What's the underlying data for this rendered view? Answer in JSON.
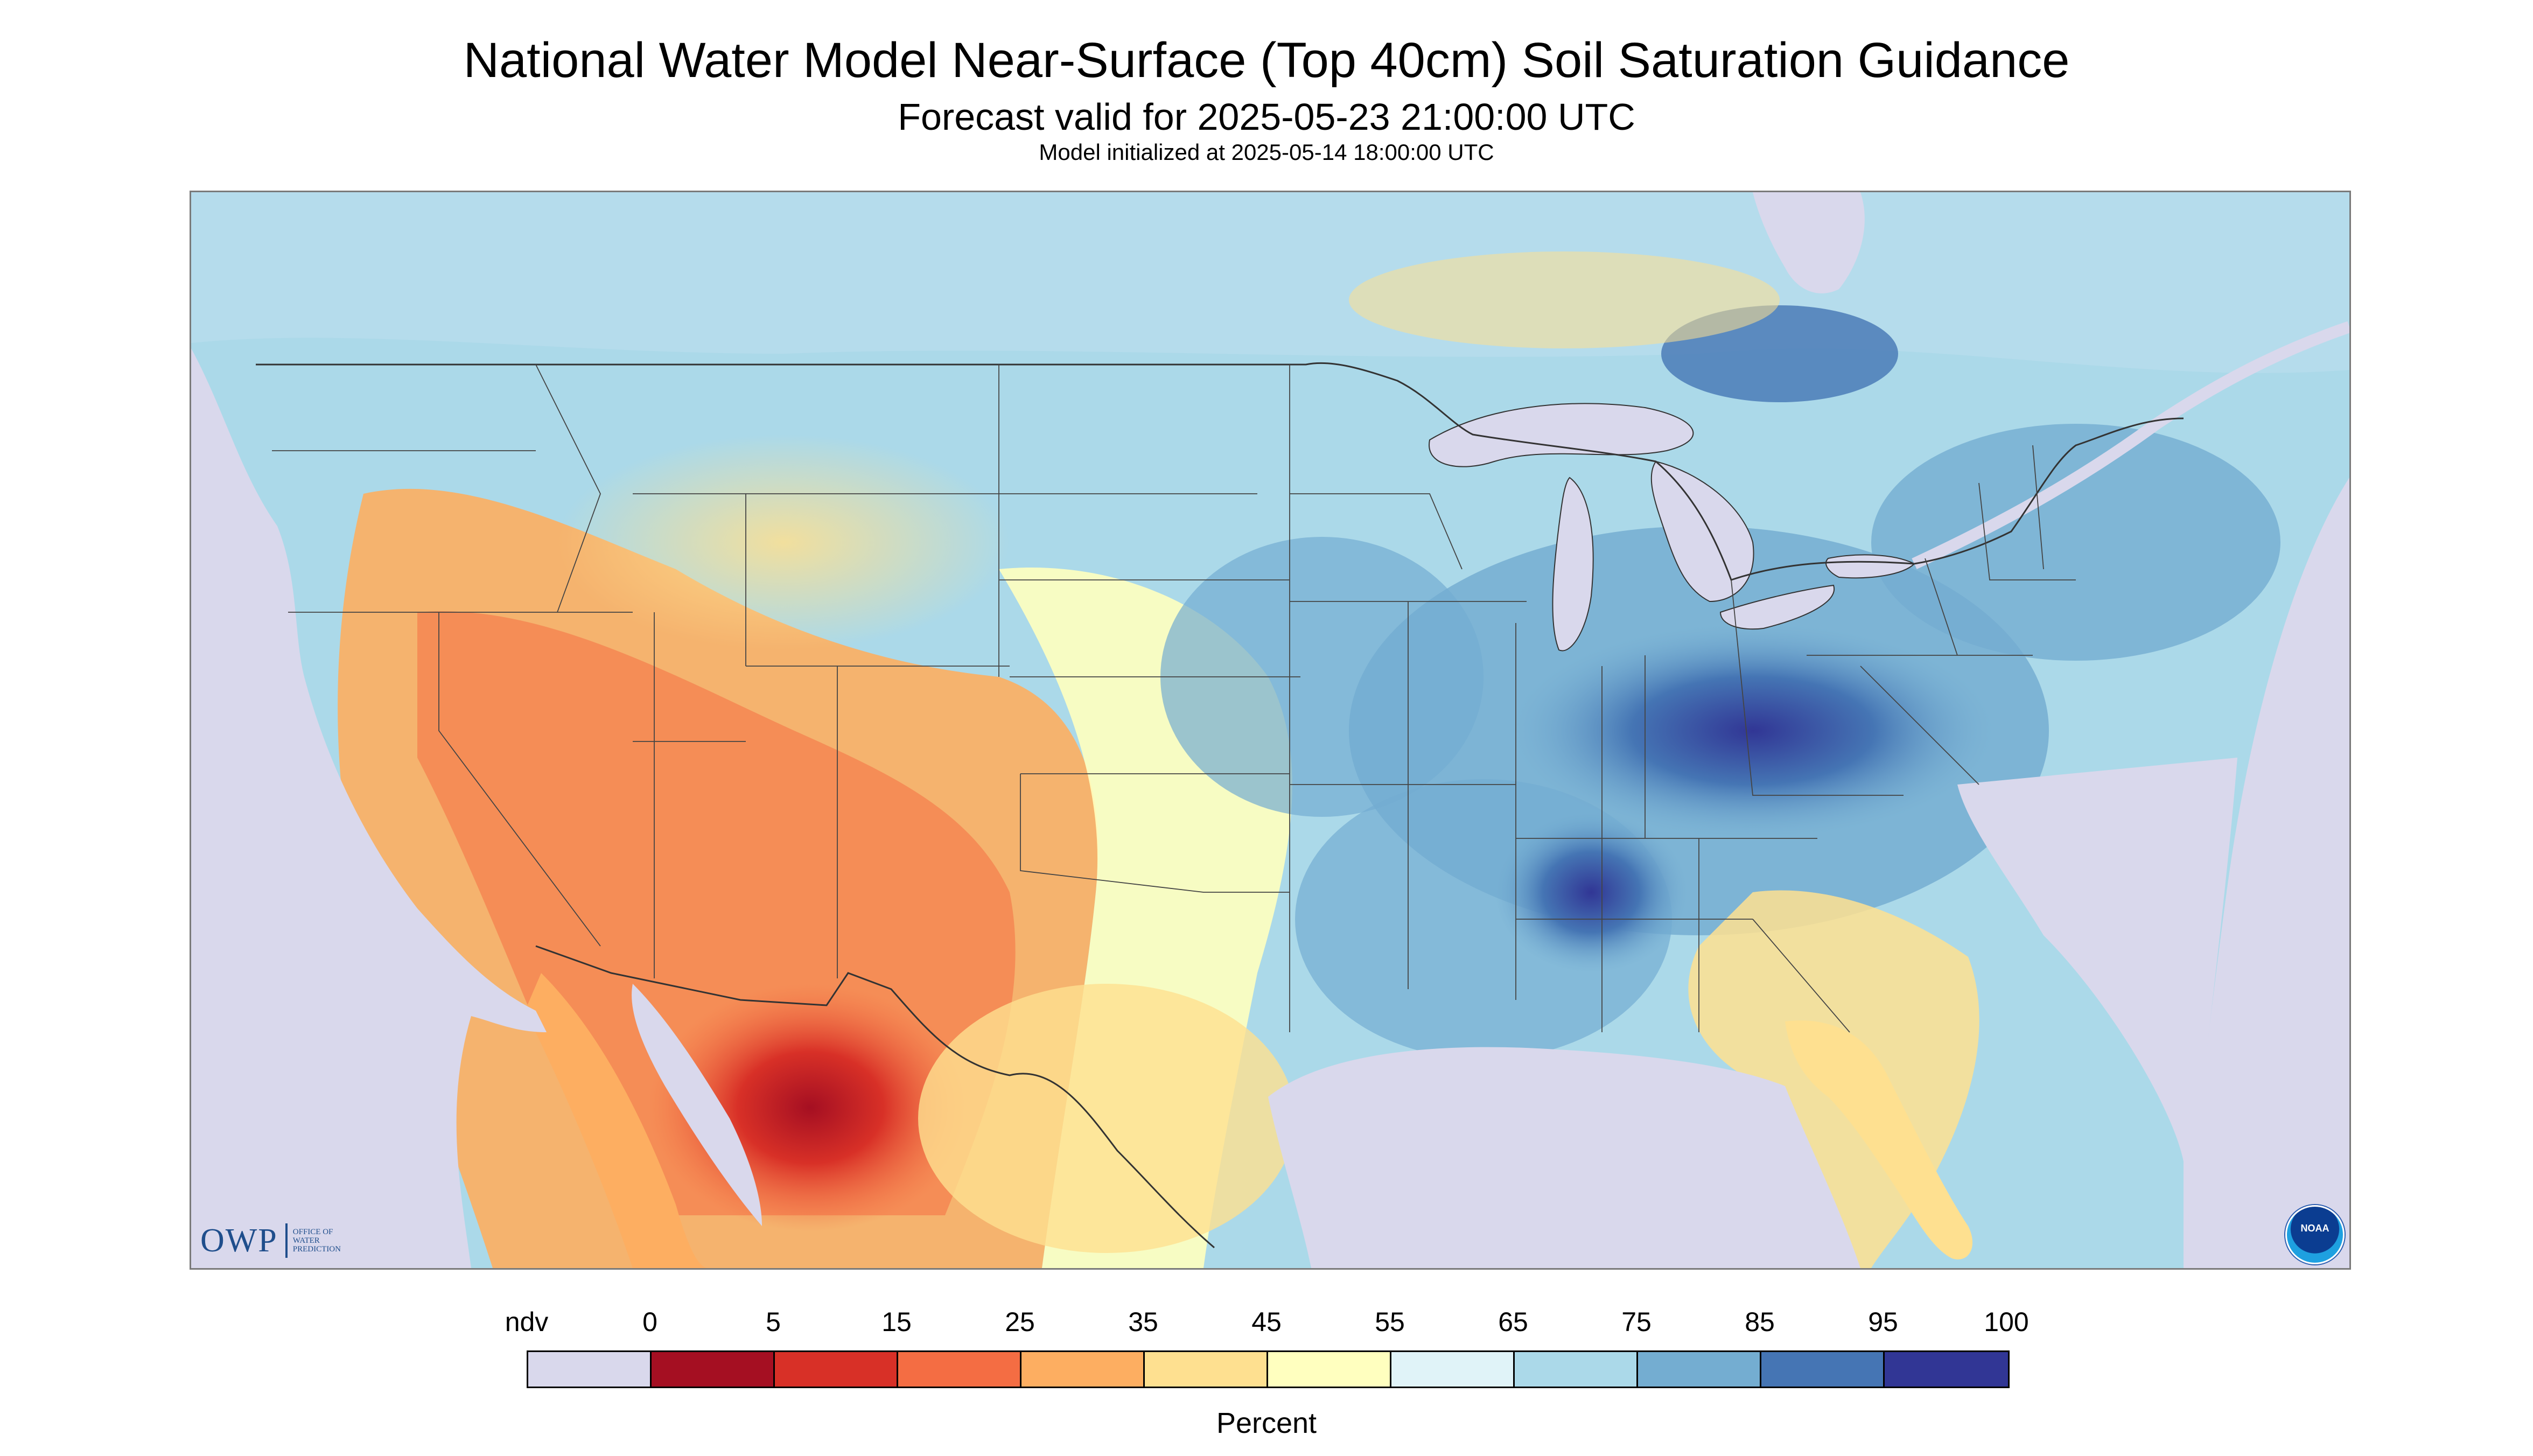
{
  "header": {
    "title": "National Water Model Near-Surface (Top 40cm) Soil Saturation Guidance",
    "subtitle": "Forecast valid for 2025-05-23 21:00:00 UTC",
    "init": "Model initialized at 2025-05-14 18:00:00 UTC"
  },
  "logos": {
    "owp": {
      "text": "OWP",
      "sub": [
        "OFFICE OF",
        "WATER",
        "PREDICTION"
      ],
      "icon": "owp-logo"
    },
    "noaa": {
      "text": "NOAA",
      "icon": "noaa-logo"
    }
  },
  "legend": {
    "labels": [
      "ndv",
      "0",
      "5",
      "15",
      "25",
      "35",
      "45",
      "55",
      "65",
      "75",
      "85",
      "95",
      "100"
    ],
    "colors": [
      "#d9d8ec",
      "#a50f22",
      "#d83027",
      "#f46d43",
      "#fdae61",
      "#fee090",
      "#ffffbf",
      "#e0f3f8",
      "#abd9e9",
      "#74add1",
      "#4575b4",
      "#313695"
    ],
    "unit": "Percent"
  },
  "map": {
    "nodata_color": "#d9d8ec",
    "water_color": "#d9d8ec",
    "boundary_color": "#333333"
  }
}
